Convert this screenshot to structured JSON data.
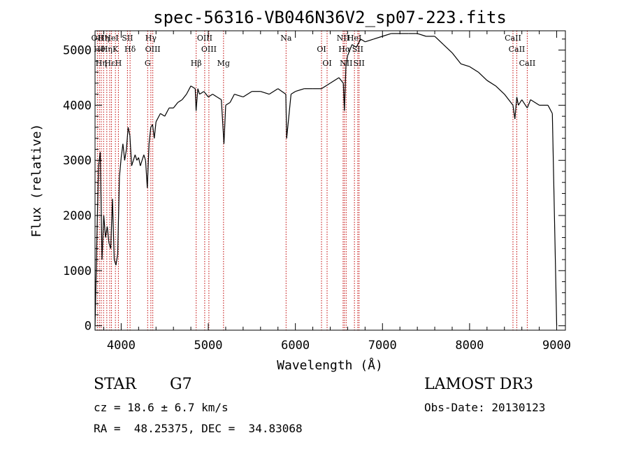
{
  "chart_data": {
    "type": "line",
    "title": "spec-56316-VB046N36V2_sp07-223.fits",
    "xlabel": "Wavelength (Å)",
    "ylabel": "Flux (relative)",
    "xlim": [
      3700,
      9100
    ],
    "ylim": [
      -80,
      5350
    ],
    "xticks": [
      4000,
      5000,
      6000,
      7000,
      8000,
      9000
    ],
    "yticks": [
      0,
      1000,
      2000,
      3000,
      4000,
      5000
    ],
    "series": [
      {
        "name": "flux",
        "x": [
          3700,
          3720,
          3740,
          3760,
          3780,
          3800,
          3820,
          3840,
          3860,
          3880,
          3900,
          3920,
          3940,
          3960,
          3980,
          4000,
          4020,
          4040,
          4060,
          4080,
          4100,
          4120,
          4140,
          4160,
          4180,
          4200,
          4220,
          4240,
          4260,
          4280,
          4300,
          4320,
          4340,
          4360,
          4380,
          4400,
          4450,
          4500,
          4550,
          4600,
          4650,
          4700,
          4750,
          4800,
          4850,
          4860,
          4880,
          4900,
          4950,
          5000,
          5050,
          5100,
          5150,
          5180,
          5200,
          5250,
          5300,
          5400,
          5500,
          5600,
          5700,
          5800,
          5890,
          5900,
          5950,
          6000,
          6100,
          6200,
          6300,
          6400,
          6500,
          6550,
          6563,
          6580,
          6600,
          6650,
          6700,
          6750,
          6800,
          6900,
          7000,
          7100,
          7200,
          7300,
          7400,
          7500,
          7600,
          7700,
          7800,
          7900,
          8000,
          8100,
          8200,
          8300,
          8400,
          8498,
          8520,
          8542,
          8560,
          8600,
          8662,
          8700,
          8800,
          8900,
          8950,
          9000
        ],
        "y": [
          0,
          1500,
          2900,
          3150,
          1200,
          2000,
          1600,
          1800,
          1500,
          1400,
          2300,
          1200,
          1100,
          1300,
          2700,
          3050,
          3300,
          3000,
          3200,
          3600,
          3450,
          2900,
          3000,
          3100,
          3000,
          3050,
          2900,
          3000,
          3100,
          3000,
          2500,
          3300,
          3600,
          3650,
          3400,
          3700,
          3850,
          3800,
          3950,
          3950,
          4050,
          4100,
          4200,
          4350,
          4300,
          3900,
          4300,
          4200,
          4250,
          4150,
          4200,
          4150,
          4100,
          3300,
          4000,
          4050,
          4200,
          4150,
          4250,
          4250,
          4200,
          4300,
          4200,
          3400,
          4200,
          4250,
          4300,
          4300,
          4300,
          4400,
          4500,
          4400,
          3900,
          4700,
          4900,
          5100,
          5050,
          5200,
          5150,
          5200,
          5250,
          5300,
          5300,
          5300,
          5300,
          5250,
          5250,
          5100,
          4950,
          4750,
          4700,
          4600,
          4450,
          4350,
          4200,
          4000,
          3750,
          4150,
          4000,
          4100,
          3950,
          4100,
          4000,
          4000,
          3850,
          0
        ]
      }
    ],
    "lines": [
      {
        "x": 3727,
        "label": "OII"
      },
      {
        "x": 3750,
        "label": "Hθ"
      },
      {
        "x": 3771,
        "label": "Hη"
      },
      {
        "x": 3798,
        "label": "Hη"
      },
      {
        "x": 3835,
        "label": "Hη"
      },
      {
        "x": 3869,
        "label": "Hε"
      },
      {
        "x": 3889,
        "label": "HeI"
      },
      {
        "x": 3934,
        "label": "K"
      },
      {
        "x": 3968,
        "label": "H"
      },
      {
        "x": 4072,
        "label": "SII"
      },
      {
        "x": 4102,
        "label": "Hδ"
      },
      {
        "x": 4304,
        "label": "G"
      },
      {
        "x": 4341,
        "label": "Hγ"
      },
      {
        "x": 4363,
        "label": "OIII"
      },
      {
        "x": 4861,
        "label": "Hβ"
      },
      {
        "x": 4959,
        "label": "OIII"
      },
      {
        "x": 5007,
        "label": "OIII"
      },
      {
        "x": 5175,
        "label": "Mg"
      },
      {
        "x": 5893,
        "label": "Na"
      },
      {
        "x": 6300,
        "label": "OI"
      },
      {
        "x": 6364,
        "label": "OI"
      },
      {
        "x": 6548,
        "label": "NII"
      },
      {
        "x": 6563,
        "label": "Hα"
      },
      {
        "x": 6583,
        "label": "NII"
      },
      {
        "x": 6678,
        "label": "HeI"
      },
      {
        "x": 6716,
        "label": "SII"
      },
      {
        "x": 6731,
        "label": "SII"
      },
      {
        "x": 8498,
        "label": "CaII"
      },
      {
        "x": 8542,
        "label": "CaII"
      },
      {
        "x": 8662,
        "label": "CaII"
      }
    ],
    "grid": false,
    "legend": "none"
  },
  "footer": {
    "class_label": "STAR",
    "subclass": "G7",
    "cz": "cz = 18.6 ± 6.7 km/s",
    "coords": "RA =  48.25375, DEC =  34.83068",
    "survey": "LAMOST DR3",
    "obs_date": "Obs-Date: 20130123"
  },
  "colors": {
    "line_marker": "#c00000",
    "spectrum": "#000000"
  }
}
